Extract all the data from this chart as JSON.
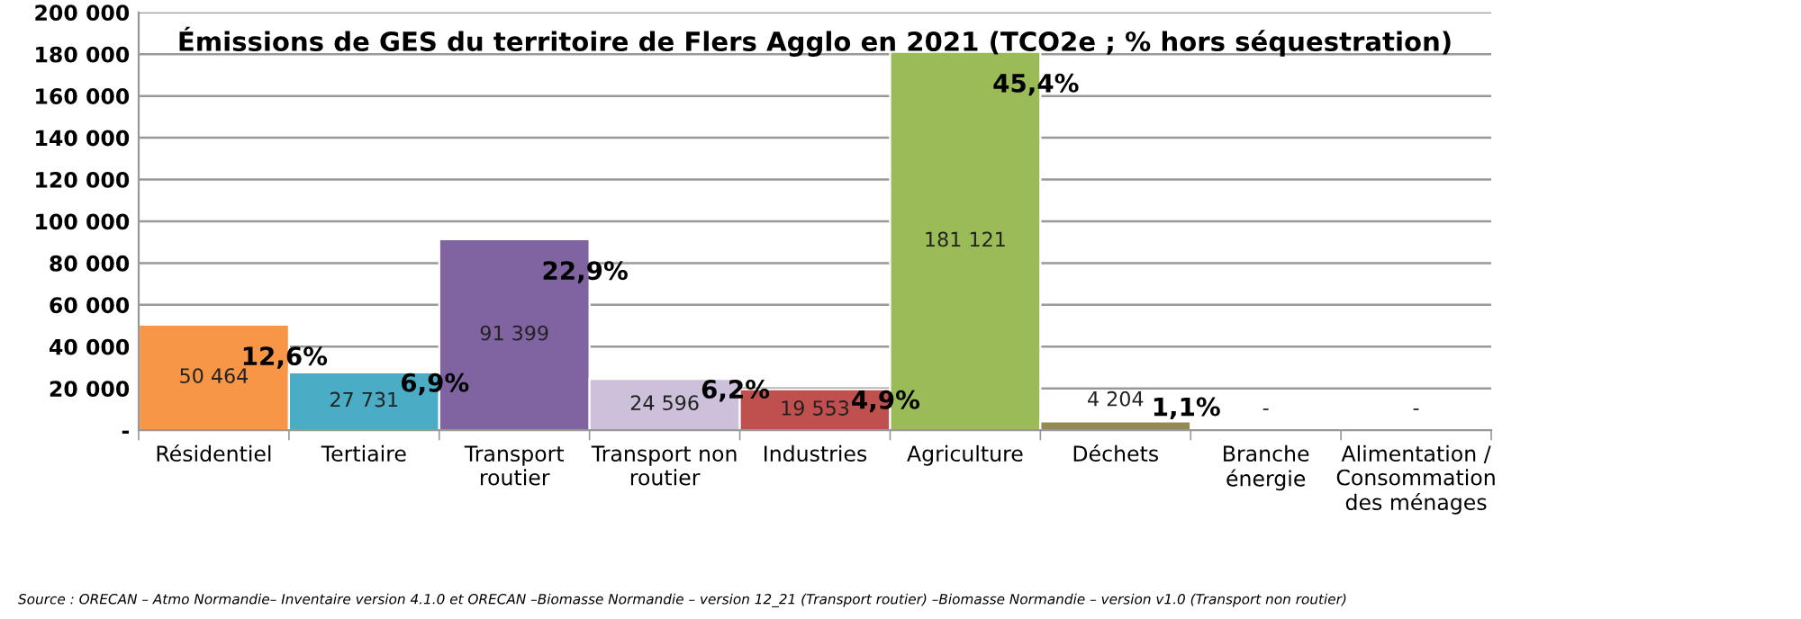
{
  "chart_data": {
    "type": "bar",
    "title": "Émissions de GES du territoire de Flers Agglo en 2021 (TCO2e ; % hors séquestration)",
    "categories": [
      "Résidentiel",
      "Tertiaire",
      "Transport\nroutier",
      "Transport non\nroutier",
      "Industries",
      "Agriculture",
      "Déchets",
      "Branche\nénergie",
      "Alimentation /\nConsommation\ndes ménages"
    ],
    "values": [
      50464,
      27731,
      91399,
      24596,
      19553,
      181121,
      4204,
      0,
      0
    ],
    "colors": [
      "#f79646",
      "#4bacc6",
      "#8064a2",
      "#ccc0da",
      "#c0504d",
      "#9bbb59",
      "#948a54",
      null,
      null
    ],
    "value_labels": [
      "50 464",
      "27 731",
      "91 399",
      "24 596",
      "19 553",
      "181 121",
      "4 204",
      "-",
      "-"
    ],
    "ylim": [
      0,
      200000
    ],
    "yticks": [
      {
        "value": 0,
        "label": "-"
      },
      {
        "value": 20000,
        "label": "20 000"
      },
      {
        "value": 40000,
        "label": "40 000"
      },
      {
        "value": 60000,
        "label": "60 000"
      },
      {
        "value": 80000,
        "label": "80 000"
      },
      {
        "value": 100000,
        "label": "100 000"
      },
      {
        "value": 120000,
        "label": "120 000"
      },
      {
        "value": 140000,
        "label": "140 000"
      },
      {
        "value": 160000,
        "label": "160 000"
      },
      {
        "value": 180000,
        "label": "180 000"
      },
      {
        "value": 200000,
        "label": "200 000"
      }
    ],
    "grid": "y",
    "annotations": [
      "12,6%",
      "6,9%",
      "22,9%",
      "6,2%",
      "4,9%",
      "45,4%",
      "1,1%",
      "Source : ORECAN – Atmo Normandie– Inventaire version 4.1.0 et ORECAN –Biomasse Normandie – version 12_21 (Transport routier) –Biomasse Normandie – version v1.0 (Transport non routier)"
    ]
  }
}
